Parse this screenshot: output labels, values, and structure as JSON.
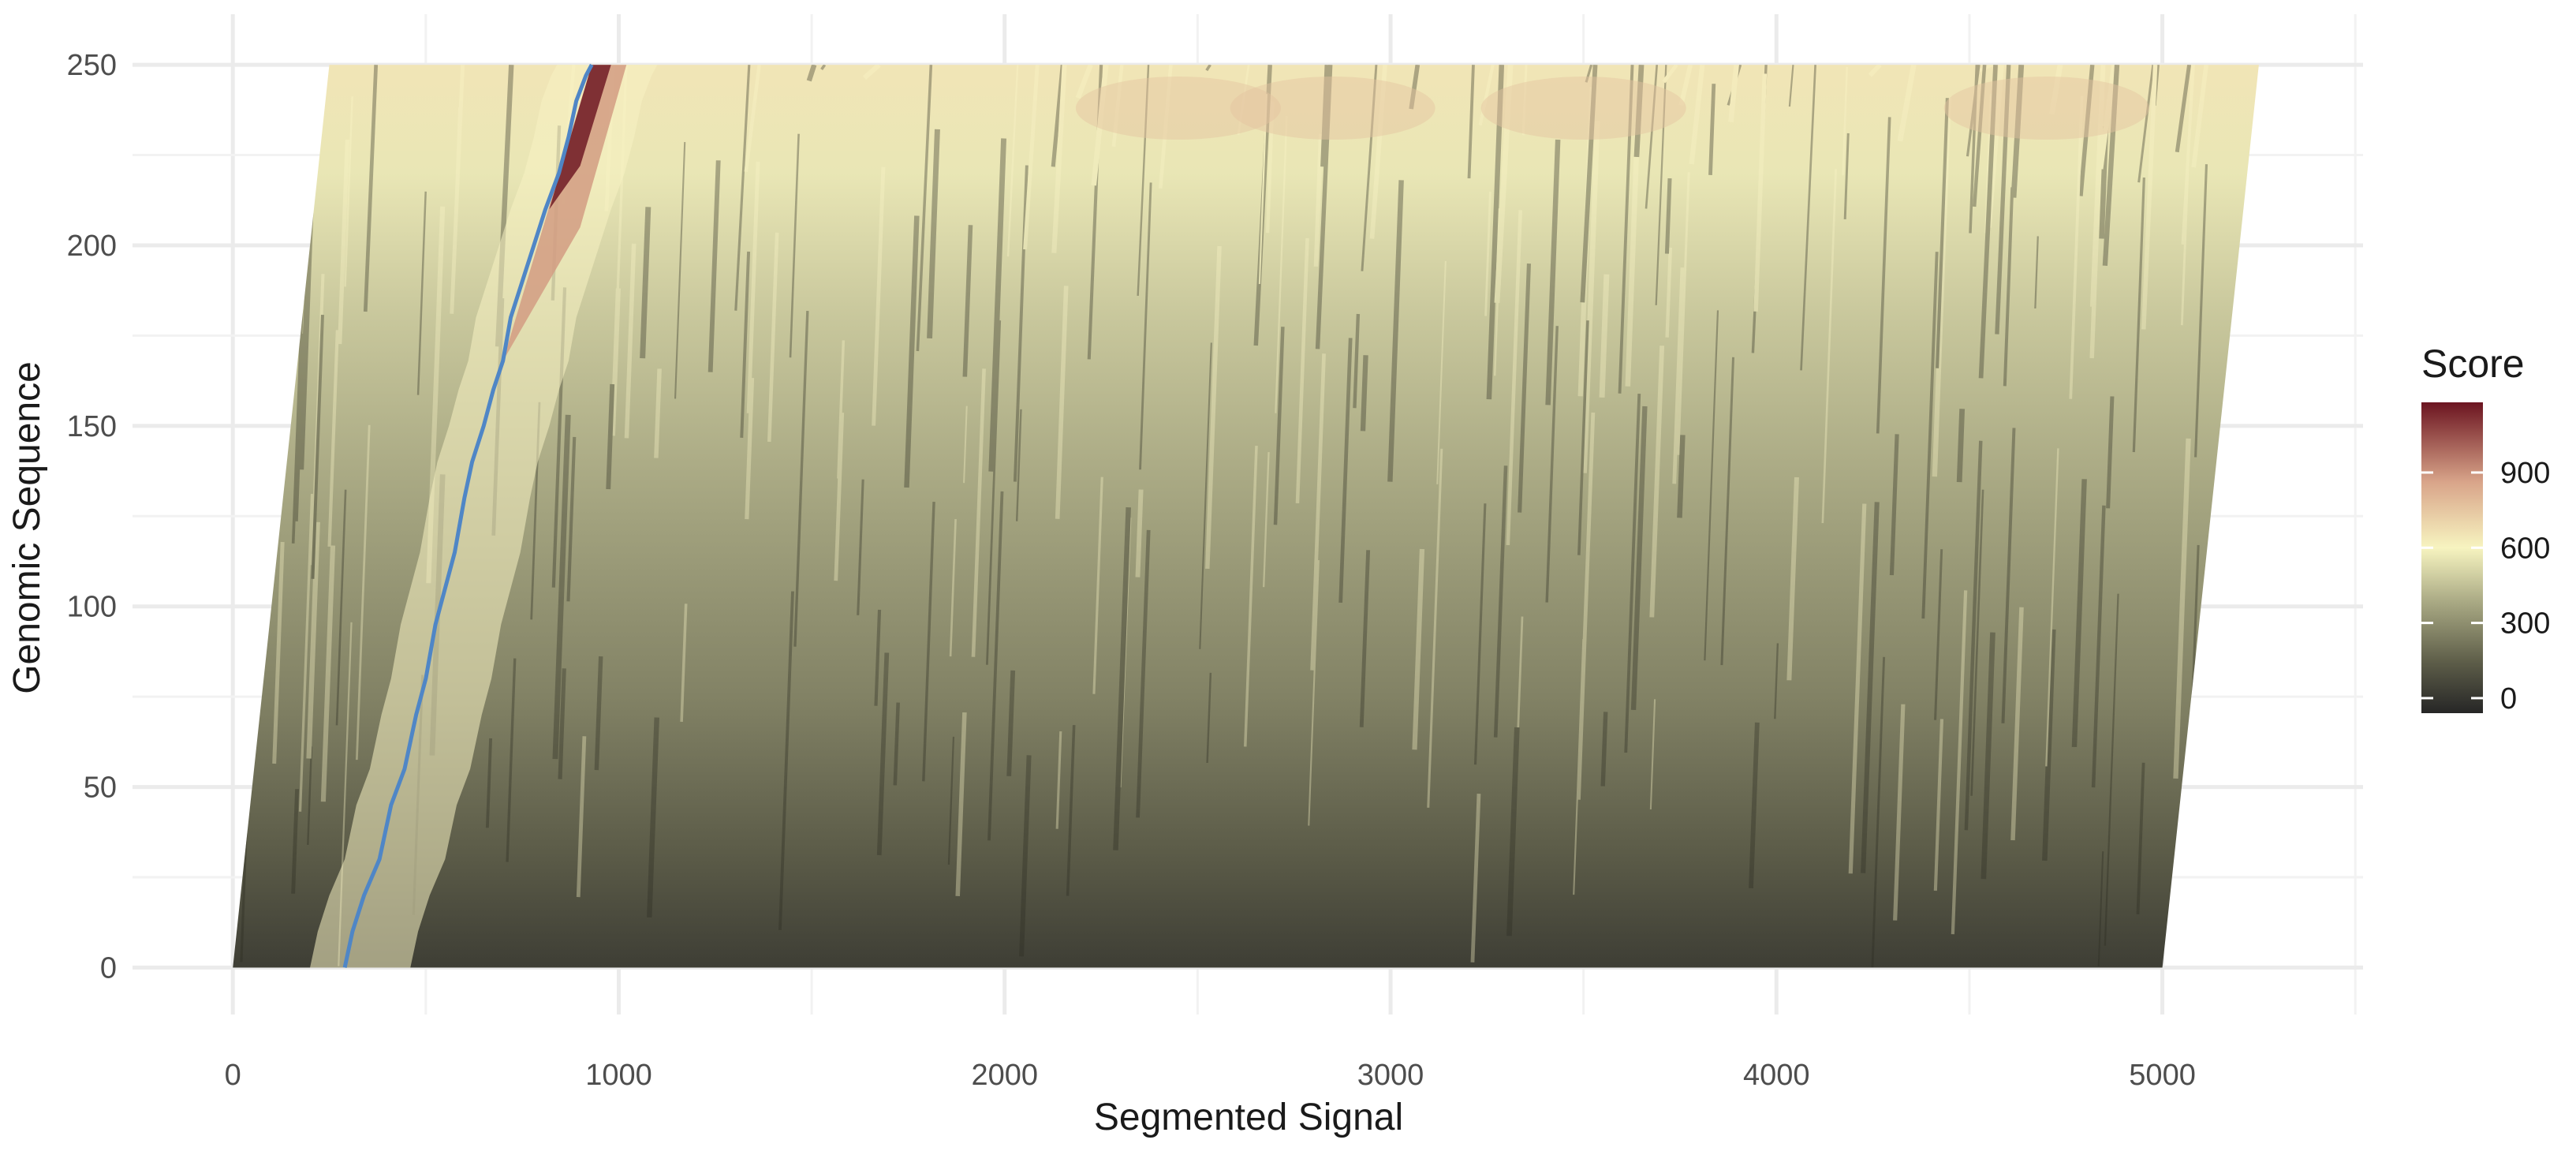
{
  "chart_data": {
    "type": "heatmap",
    "title": "",
    "xlabel": "Segmented Signal",
    "ylabel": "Genomic Sequence",
    "xlim": [
      -260,
      5520
    ],
    "ylim": [
      -13,
      264
    ],
    "x_ticks": [
      0,
      1000,
      2000,
      3000,
      4000,
      5000
    ],
    "y_ticks": [
      0,
      50,
      100,
      150,
      200,
      250
    ],
    "grid": true,
    "band": {
      "description": "banded alignment matrix",
      "bottom_left": [
        0,
        0
      ],
      "bottom_right": [
        5000,
        0
      ],
      "top_left": [
        250,
        250
      ],
      "top_right": [
        5250,
        250
      ]
    },
    "path": {
      "color": "#4f86c6",
      "points": [
        [
          290,
          0
        ],
        [
          310,
          10
        ],
        [
          340,
          20
        ],
        [
          380,
          30
        ],
        [
          410,
          45
        ],
        [
          445,
          55
        ],
        [
          475,
          70
        ],
        [
          500,
          80
        ],
        [
          525,
          95
        ],
        [
          550,
          105
        ],
        [
          575,
          115
        ],
        [
          600,
          130
        ],
        [
          620,
          140
        ],
        [
          650,
          150
        ],
        [
          675,
          160
        ],
        [
          700,
          168
        ],
        [
          720,
          180
        ],
        [
          750,
          190
        ],
        [
          780,
          200
        ],
        [
          810,
          210
        ],
        [
          845,
          220
        ],
        [
          870,
          230
        ],
        [
          890,
          240
        ],
        [
          915,
          247
        ],
        [
          930,
          250
        ]
      ]
    },
    "legend": {
      "title": "Score",
      "placement": "right",
      "ticks": [
        "0",
        "300",
        "600",
        "900"
      ],
      "tick_values": [
        0,
        300,
        600,
        900
      ],
      "range": [
        -60,
        1180
      ],
      "colors": [
        "#262626",
        "#5f5f4a",
        "#a8a883",
        "#f7f4c0",
        "#d9a58a",
        "#6b1420"
      ],
      "color_stops": [
        -60,
        150,
        380,
        600,
        860,
        1180
      ]
    }
  }
}
